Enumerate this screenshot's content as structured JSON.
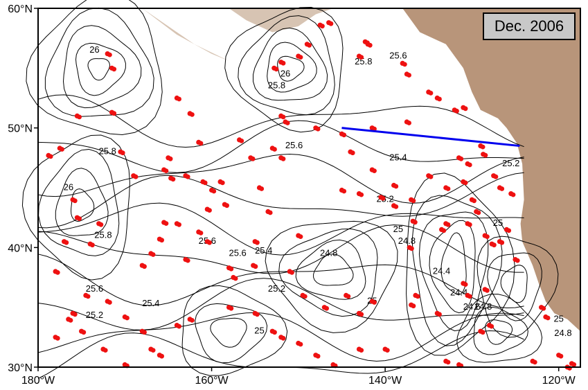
{
  "date_label": "Dec. 2006",
  "axes": {
    "x_ticks": [
      "180°W",
      "160°W",
      "140°W",
      "120°W"
    ],
    "y_ticks": [
      "60°N",
      "50°N",
      "40°N",
      "30°N"
    ]
  },
  "map": {
    "lon_range": [
      -180,
      -117.5
    ],
    "lat_range": [
      30,
      60
    ],
    "land_color": "#b8957a",
    "water_color": "#ffffff",
    "contour_color": "#000000",
    "float_color": "#ee1111",
    "section_line_color": "#0000ee"
  },
  "section_line": {
    "start": {
      "lon": -145,
      "lat": 50
    },
    "end": {
      "lon": -124.5,
      "lat": 48.5
    }
  },
  "contour_labels": [
    {
      "text": "26",
      "lon": -173.5,
      "lat": 56.5
    },
    {
      "text": "25.8",
      "lon": -152.5,
      "lat": 53.5
    },
    {
      "text": "26",
      "lon": -151.5,
      "lat": 54.5
    },
    {
      "text": "25.8",
      "lon": -142.5,
      "lat": 55.5
    },
    {
      "text": "25.6",
      "lon": -138.5,
      "lat": 56.0
    },
    {
      "text": "25.8",
      "lon": -172.0,
      "lat": 48.0
    },
    {
      "text": "25.6",
      "lon": -150.5,
      "lat": 48.5
    },
    {
      "text": "25.4",
      "lon": -138.5,
      "lat": 47.5
    },
    {
      "text": "25.2",
      "lon": -125.5,
      "lat": 47.0
    },
    {
      "text": "26",
      "lon": -176.5,
      "lat": 45.0
    },
    {
      "text": "25.2",
      "lon": -140.0,
      "lat": 44.0
    },
    {
      "text": "25.8",
      "lon": -172.5,
      "lat": 41.0
    },
    {
      "text": "25.6",
      "lon": -160.5,
      "lat": 40.5
    },
    {
      "text": "25.6",
      "lon": -157.0,
      "lat": 39.5
    },
    {
      "text": "25.4",
      "lon": -154.0,
      "lat": 39.7
    },
    {
      "text": "25",
      "lon": -138.5,
      "lat": 41.5
    },
    {
      "text": "24.8",
      "lon": -137.5,
      "lat": 40.5
    },
    {
      "text": "25",
      "lon": -127.0,
      "lat": 42.0
    },
    {
      "text": "24.8",
      "lon": -146.5,
      "lat": 39.5
    },
    {
      "text": "25.2",
      "lon": -152.5,
      "lat": 36.5
    },
    {
      "text": "24.4",
      "lon": -133.5,
      "lat": 38.0
    },
    {
      "text": "24.4",
      "lon": -131.5,
      "lat": 36.2
    },
    {
      "text": "24.6",
      "lon": -130.0,
      "lat": 35.0
    },
    {
      "text": "24.8",
      "lon": -128.7,
      "lat": 35.0
    },
    {
      "text": "25",
      "lon": -141.5,
      "lat": 35.5
    },
    {
      "text": "25.6",
      "lon": -173.5,
      "lat": 36.5
    },
    {
      "text": "25.4",
      "lon": -167.0,
      "lat": 35.3
    },
    {
      "text": "25.2",
      "lon": -173.5,
      "lat": 34.3
    },
    {
      "text": "25",
      "lon": -154.5,
      "lat": 33.0
    },
    {
      "text": "25",
      "lon": -120.0,
      "lat": 34.0
    },
    {
      "text": "24.8",
      "lon": -119.5,
      "lat": 32.8
    }
  ]
}
